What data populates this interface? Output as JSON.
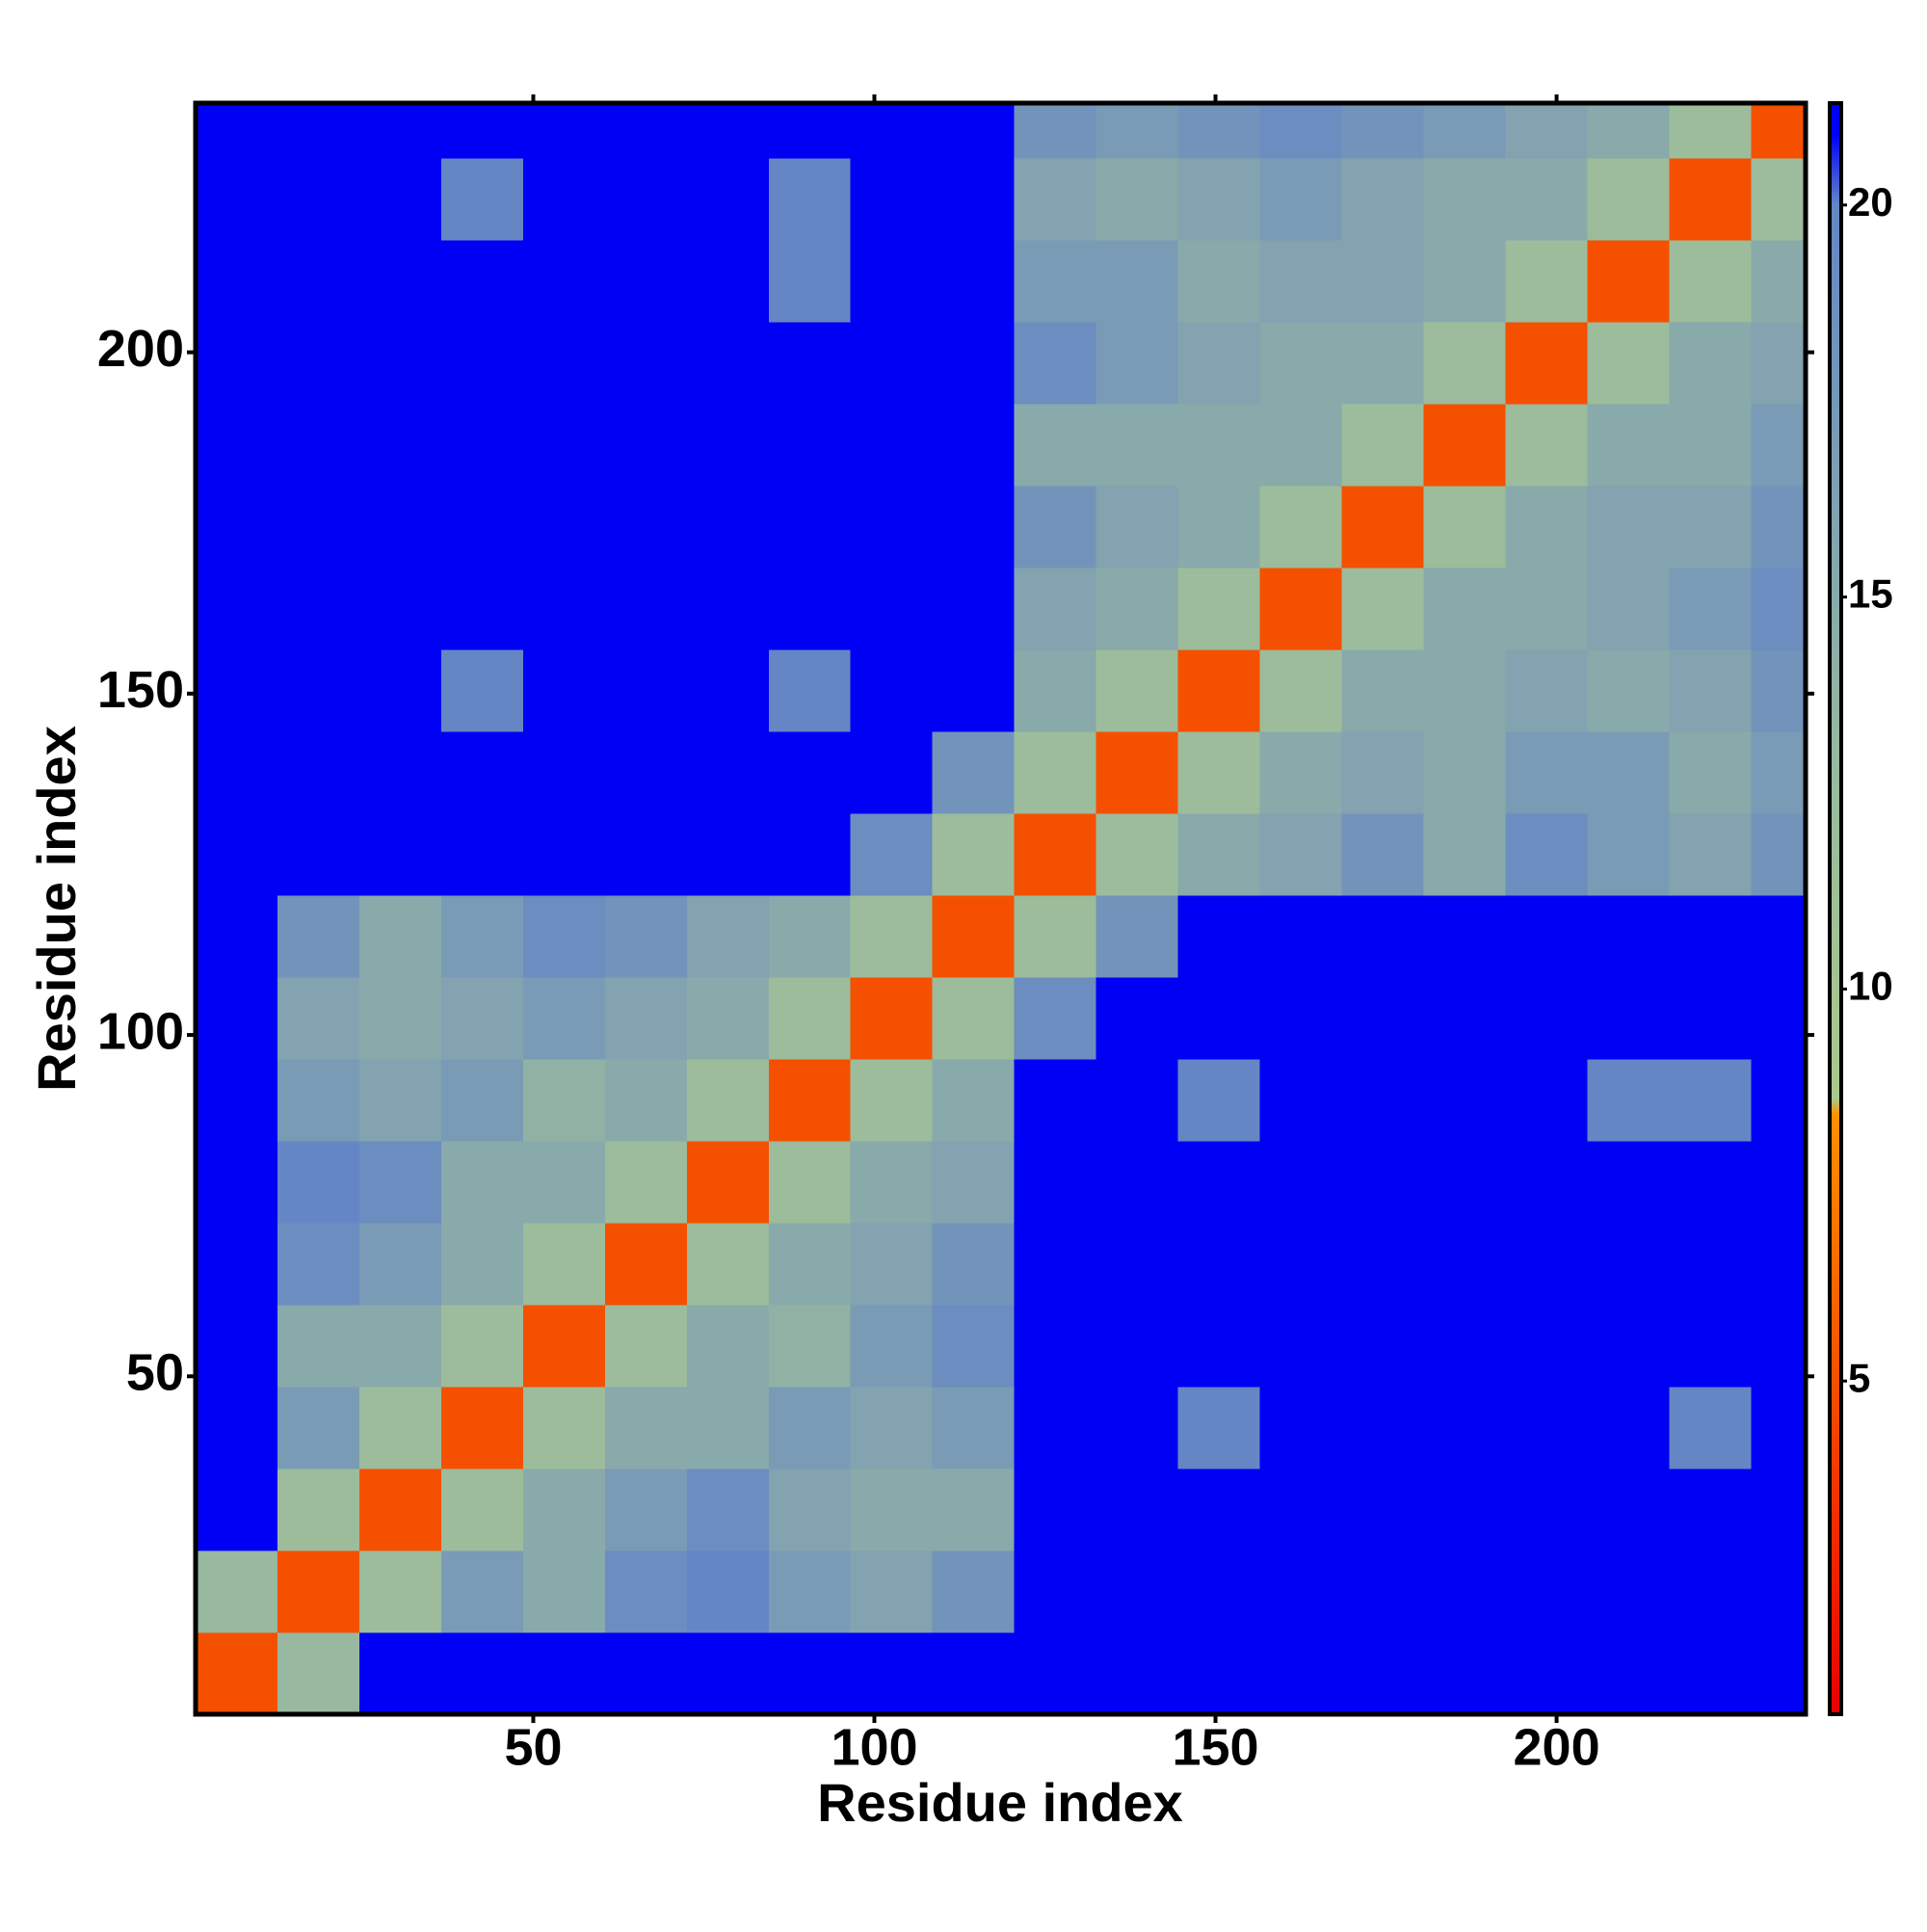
{
  "chart_data": {
    "type": "heatmap",
    "x_label": "Residue index",
    "y_label": "Residue index",
    "x_bins": [
      0.5,
      12.5,
      24.5,
      36.5,
      48.5,
      60.5,
      72.5,
      84.5,
      96.5,
      108.5,
      120.5,
      132.5,
      144.5,
      156.5,
      168.5,
      180.5,
      192.5,
      204.5,
      216.5,
      228.5,
      236.5
    ],
    "y_bins": [
      0.5,
      12.5,
      24.5,
      36.5,
      48.5,
      60.5,
      72.5,
      84.5,
      96.5,
      108.5,
      120.5,
      132.5,
      144.5,
      156.5,
      168.5,
      180.5,
      192.5,
      204.5,
      216.5,
      228.5,
      236.5
    ],
    "z": [
      [
        5,
        13,
        21,
        21,
        21,
        21,
        21,
        21,
        21,
        21,
        21,
        21,
        21,
        21,
        21,
        21,
        21,
        21,
        21,
        21
      ],
      [
        13,
        5,
        12,
        17,
        15,
        19,
        20,
        17,
        16,
        18,
        21,
        21,
        21,
        21,
        21,
        21,
        21,
        21,
        21,
        21
      ],
      [
        21,
        12,
        5,
        12,
        15,
        17,
        19,
        16,
        15,
        15,
        21,
        21,
        21,
        21,
        21,
        21,
        21,
        21,
        21,
        21
      ],
      [
        21,
        17,
        12,
        5,
        12,
        15,
        15,
        17,
        16,
        17,
        21,
        21,
        20,
        21,
        21,
        21,
        21,
        21,
        20,
        21
      ],
      [
        21,
        15,
        15,
        12,
        5,
        12,
        15,
        14,
        17,
        19,
        21,
        21,
        21,
        21,
        21,
        21,
        21,
        21,
        21,
        21
      ],
      [
        21,
        19,
        17,
        15,
        12,
        5,
        12,
        15,
        16,
        18,
        21,
        21,
        21,
        21,
        21,
        21,
        21,
        21,
        21,
        21
      ],
      [
        21,
        20,
        19,
        15,
        15,
        12,
        5,
        12,
        15,
        16,
        21,
        21,
        21,
        21,
        21,
        21,
        21,
        21,
        21,
        21
      ],
      [
        21,
        17,
        16,
        17,
        14,
        15,
        12,
        5,
        12,
        15,
        21,
        21,
        20,
        21,
        21,
        21,
        21,
        20,
        20,
        21
      ],
      [
        21,
        16,
        15,
        16,
        17,
        16,
        15,
        12,
        5,
        12,
        19,
        21,
        21,
        21,
        21,
        21,
        21,
        21,
        21,
        21
      ],
      [
        21,
        18,
        15,
        17,
        19,
        18,
        16,
        15,
        12,
        5,
        12,
        18,
        21,
        21,
        21,
        21,
        21,
        21,
        21,
        21
      ],
      [
        21,
        21,
        21,
        21,
        21,
        21,
        21,
        21,
        19,
        12,
        5,
        12,
        15,
        16,
        18,
        15,
        19,
        17,
        16,
        18
      ],
      [
        21,
        21,
        21,
        21,
        21,
        21,
        21,
        21,
        21,
        18,
        12,
        5,
        12,
        15,
        16,
        15,
        17,
        17,
        15,
        17
      ],
      [
        21,
        21,
        21,
        20,
        21,
        21,
        21,
        20,
        21,
        21,
        15,
        12,
        5,
        12,
        15,
        15,
        16,
        15,
        16,
        18
      ],
      [
        21,
        21,
        21,
        21,
        21,
        21,
        21,
        21,
        21,
        21,
        16,
        15,
        12,
        5,
        12,
        15,
        15,
        16,
        17,
        19
      ],
      [
        21,
        21,
        21,
        21,
        21,
        21,
        21,
        21,
        21,
        21,
        18,
        16,
        15,
        12,
        5,
        12,
        15,
        16,
        16,
        18
      ],
      [
        21,
        21,
        21,
        21,
        21,
        21,
        21,
        21,
        21,
        21,
        15,
        15,
        15,
        15,
        12,
        5,
        12,
        15,
        15,
        17
      ],
      [
        21,
        21,
        21,
        21,
        21,
        21,
        21,
        21,
        21,
        21,
        19,
        17,
        16,
        15,
        15,
        12,
        5,
        12,
        15,
        16
      ],
      [
        21,
        21,
        21,
        21,
        21,
        21,
        21,
        20,
        21,
        21,
        17,
        17,
        15,
        16,
        16,
        15,
        12,
        5,
        12,
        15
      ],
      [
        21,
        21,
        21,
        20,
        21,
        21,
        21,
        20,
        21,
        21,
        16,
        15,
        16,
        17,
        16,
        15,
        15,
        12,
        5,
        12
      ],
      [
        21,
        21,
        21,
        21,
        21,
        21,
        21,
        21,
        21,
        21,
        18,
        17,
        18,
        19,
        18,
        17,
        16,
        15,
        12,
        5
      ]
    ],
    "xlim": [
      0.5,
      236.5
    ],
    "ylim": [
      0.5,
      236.5
    ],
    "xticks": [
      50,
      100,
      150,
      200
    ],
    "yticks": [
      50,
      100,
      150,
      200
    ],
    "zlim": [
      0.75,
      21.3
    ],
    "zticks": [
      5,
      10,
      15,
      20
    ],
    "colorscale": [
      {
        "value": 0.75,
        "color": "#e80000"
      },
      {
        "value": 8.4,
        "color": "#ff9000"
      },
      {
        "value": 8.6,
        "color": "#a9c98e"
      },
      {
        "value": 13,
        "color": "#98b8a0"
      },
      {
        "value": 20,
        "color": "#6486c4"
      },
      {
        "value": 20.9,
        "color": "#0000f5"
      }
    ]
  }
}
